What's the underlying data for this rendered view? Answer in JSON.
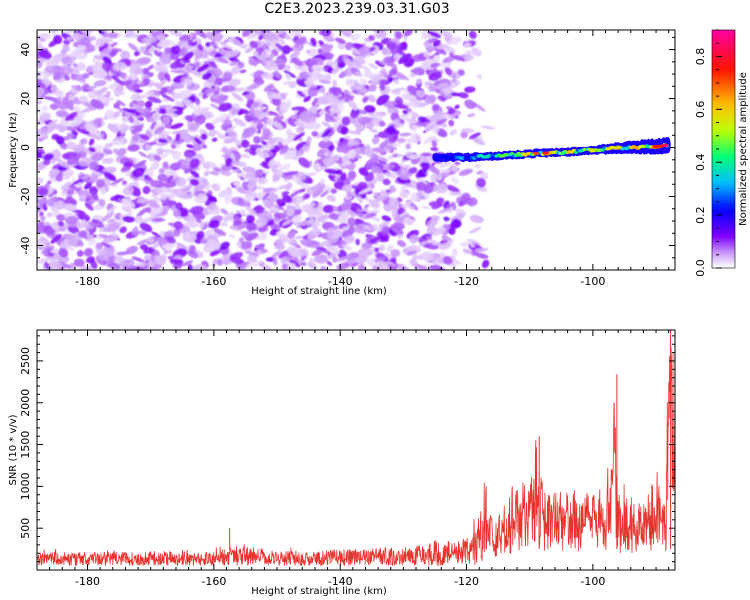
{
  "title": "C2E3.2023.239.03.31.G03",
  "chart_data": [
    {
      "type": "heatmap",
      "xlabel": "Height of straight line (km)",
      "ylabel": "Frequency (Hz)",
      "xlim": [
        -188,
        -87
      ],
      "ylim": [
        -50,
        48
      ],
      "xticks": [
        -180,
        -160,
        -140,
        -120,
        -100
      ],
      "xtick_labels": [
        "-180",
        "-160",
        "-140",
        "-120",
        "-100"
      ],
      "yticks": [
        -40,
        -20,
        0,
        20,
        40
      ],
      "ytick_labels": [
        "-40",
        "-20",
        "0",
        "20",
        "40"
      ],
      "colorbar": {
        "label": "Normalized spectral amplitude",
        "range": [
          0,
          0.9
        ],
        "ticks": [
          0.0,
          0.2,
          0.4,
          0.6,
          0.8
        ],
        "tick_labels": [
          "0.0",
          "0.2",
          "0.4",
          "0.6",
          "0.8"
        ],
        "colormap": "rainbow",
        "colors": [
          "#ffffff",
          "#8000ff",
          "#0000ff",
          "#00c0ff",
          "#00ff80",
          "#c0ff00",
          "#ffc000",
          "#ff0000",
          "#ff00a0"
        ]
      },
      "noise_region": {
        "x_range": [
          -188,
          -118
        ],
        "amplitude_range": [
          0.02,
          0.12
        ]
      },
      "signal_band": {
        "x": [
          -125,
          -120,
          -115,
          -110,
          -105,
          -100,
          -95,
          -90,
          -88
        ],
        "frequency": [
          -4,
          -4,
          -3.5,
          -2.5,
          -2,
          -1,
          0,
          0.5,
          1
        ],
        "amplitude": [
          0.15,
          0.35,
          0.45,
          0.6,
          0.65,
          0.55,
          0.6,
          0.7,
          0.8
        ]
      }
    },
    {
      "type": "line",
      "xlabel": "Height of straight line (km)",
      "ylabel": "SNR (10 * v/v)",
      "xlim": [
        -188,
        -87
      ],
      "ylim": [
        0,
        2870
      ],
      "xticks": [
        -180,
        -160,
        -140,
        -120,
        -100
      ],
      "xtick_labels": [
        "-180",
        "-160",
        "-140",
        "-120",
        "-100"
      ],
      "yticks": [
        500,
        1000,
        1500,
        2000,
        2500
      ],
      "ytick_labels": [
        "500",
        "1000",
        "1500",
        "2000",
        "2500"
      ],
      "color": "#e8332e",
      "series": [
        {
          "x": [
            -188,
            -180,
            -170,
            -160,
            -157.5,
            -150,
            -140,
            -135,
            -130,
            -125,
            -122,
            -119,
            -117,
            -116,
            -114,
            -112,
            -110,
            -109,
            -108,
            -106,
            -104,
            -102,
            -100,
            -98,
            -96.5,
            -96,
            -95,
            -93,
            -91,
            -90,
            -88.5,
            -88,
            -87.5
          ],
          "y": [
            200,
            190,
            200,
            195,
            300,
            210,
            230,
            250,
            280,
            330,
            380,
            420,
            1000,
            620,
            850,
            1020,
            1200,
            1600,
            1150,
            1050,
            1050,
            900,
            980,
            1000,
            2340,
            900,
            1000,
            850,
            950,
            1200,
            800,
            2870,
            2600
          ]
        }
      ]
    }
  ]
}
